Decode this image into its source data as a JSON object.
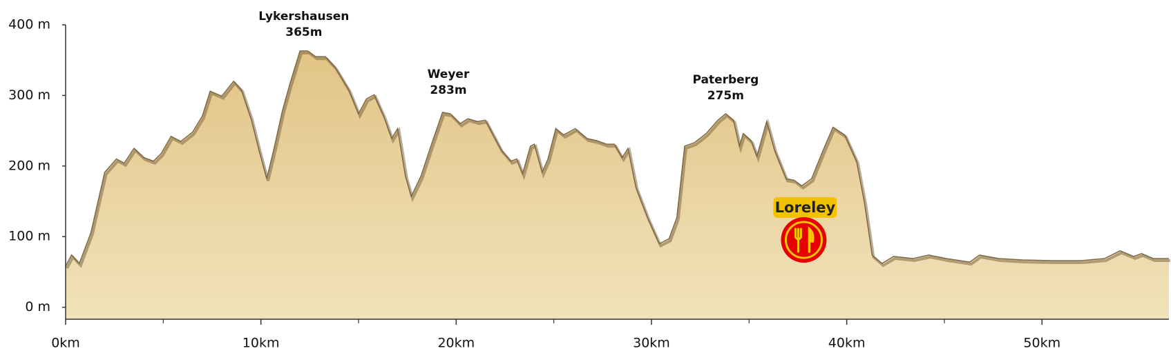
{
  "chart_data": {
    "type": "area",
    "x": [
      0,
      0.3,
      0.7,
      1.3,
      2.0,
      2.6,
      3.0,
      3.5,
      4.0,
      4.5,
      4.9,
      5.4,
      5.9,
      6.5,
      7.0,
      7.4,
      8.0,
      8.6,
      9.0,
      9.5,
      9.9,
      10.3,
      10.7,
      11.1,
      11.5,
      12.0,
      12.4,
      12.8,
      13.3,
      13.8,
      14.5,
      15.0,
      15.4,
      15.8,
      16.3,
      16.7,
      17.0,
      17.4,
      17.7,
      18.2,
      18.7,
      19.3,
      19.7,
      20.2,
      20.6,
      21.1,
      21.5,
      21.8,
      22.3,
      22.8,
      23.1,
      23.4,
      23.8,
      24.0,
      24.4,
      24.7,
      25.1,
      25.5,
      26.1,
      26.7,
      27.2,
      27.7,
      28.1,
      28.5,
      28.8,
      29.2,
      29.8,
      30.4,
      30.9,
      31.3,
      31.7,
      32.2,
      32.8,
      33.4,
      33.8,
      34.2,
      34.5,
      34.7,
      35.1,
      35.4,
      35.9,
      36.3,
      36.9,
      37.3,
      37.7,
      38.2,
      38.8,
      39.3,
      39.9,
      40.5,
      40.9,
      41.3,
      41.8,
      42.4,
      43.4,
      44.2,
      45.1,
      46.3,
      46.8,
      47.8,
      49.0,
      50.5,
      52.0,
      53.2,
      54.0,
      54.7,
      55.1,
      55.7,
      56.5
    ],
    "values": [
      58,
      74,
      62,
      106,
      191,
      210,
      204,
      225,
      212,
      207,
      218,
      242,
      235,
      248,
      271,
      306,
      299,
      320,
      308,
      267,
      223,
      182,
      228,
      278,
      318,
      363,
      363,
      355,
      355,
      340,
      308,
      274,
      295,
      301,
      270,
      239,
      253,
      186,
      157,
      186,
      228,
      276,
      274,
      260,
      267,
      263,
      265,
      249,
      223,
      207,
      210,
      189,
      228,
      231,
      191,
      210,
      253,
      244,
      253,
      239,
      236,
      231,
      231,
      212,
      225,
      170,
      127,
      90,
      97,
      127,
      228,
      233,
      246,
      265,
      274,
      265,
      228,
      246,
      236,
      214,
      263,
      223,
      182,
      180,
      172,
      182,
      223,
      255,
      244,
      207,
      149,
      74,
      62,
      72,
      69,
      74,
      69,
      64,
      74,
      69,
      67,
      66,
      66,
      69,
      80,
      72,
      76,
      69,
      69
    ],
    "color": "#e8cf98",
    "edge_color": "#7d6846",
    "xlim": [
      0,
      56.5
    ],
    "ylim": [
      -15,
      400
    ],
    "xticks": [
      {
        "value": 0,
        "label": "0km"
      },
      {
        "value": 10,
        "label": "10km"
      },
      {
        "value": 20,
        "label": "20km"
      },
      {
        "value": 30,
        "label": "30km"
      },
      {
        "value": 40,
        "label": "40km"
      },
      {
        "value": 50,
        "label": "50km"
      }
    ],
    "yticks": [
      {
        "value": 0,
        "label": "0 m"
      },
      {
        "value": 100,
        "label": "100 m"
      },
      {
        "value": 200,
        "label": "200 m"
      },
      {
        "value": 300,
        "label": "300 m"
      },
      {
        "value": 400,
        "label": "400 m"
      }
    ],
    "annotations": [
      {
        "name": "Lykershausen",
        "label": "365m",
        "x": 12.2,
        "value": 365
      },
      {
        "name": "Weyer",
        "label": "283m",
        "x": 19.6,
        "value": 283
      },
      {
        "name": "Paterberg",
        "label": "275m",
        "x": 33.8,
        "value": 275
      }
    ],
    "poi": {
      "name": "Loreley",
      "x": 37.8
    }
  }
}
